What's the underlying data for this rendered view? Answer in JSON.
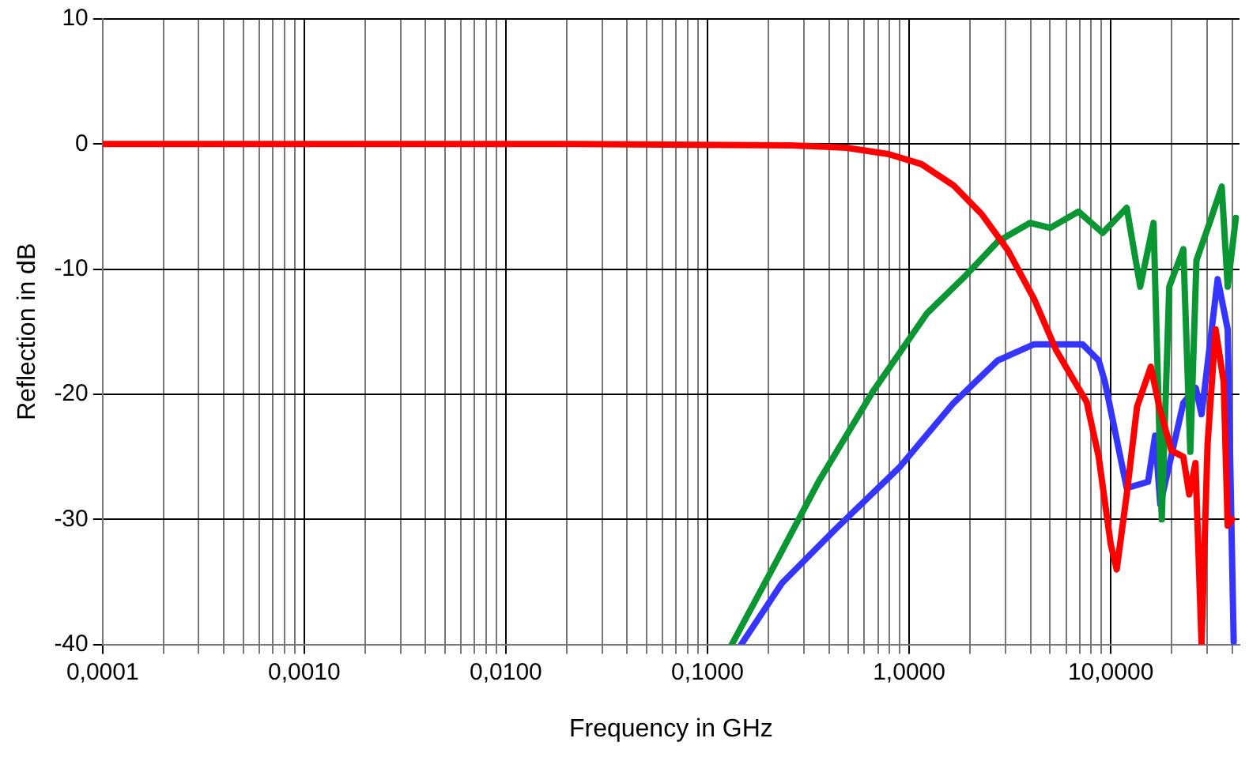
{
  "chart_data": {
    "type": "line",
    "xlabel": "Frequency in GHz",
    "ylabel": "Reflection in dB",
    "log": "x",
    "grid": true,
    "legend": false,
    "marker": "none",
    "line_style": "solid",
    "xlim": [
      0.0001,
      43.5
    ],
    "ylim": [
      -40,
      10
    ],
    "yticks": [
      -40,
      -30,
      -20,
      -10,
      0,
      10
    ],
    "xticks": [
      {
        "value": 0.0001,
        "label": "0,0001"
      },
      {
        "value": 0.0002,
        "label": null
      },
      {
        "value": 0.0003,
        "label": null
      },
      {
        "value": 0.0004,
        "label": null
      },
      {
        "value": 0.0005,
        "label": null
      },
      {
        "value": 0.0006,
        "label": null
      },
      {
        "value": 0.0007,
        "label": null
      },
      {
        "value": 0.0008,
        "label": null
      },
      {
        "value": 0.0009,
        "label": null
      },
      {
        "value": 0.001,
        "label": "0,0010"
      },
      {
        "value": 0.002,
        "label": null
      },
      {
        "value": 0.003,
        "label": null
      },
      {
        "value": 0.004,
        "label": null
      },
      {
        "value": 0.005,
        "label": null
      },
      {
        "value": 0.006,
        "label": null
      },
      {
        "value": 0.007,
        "label": null
      },
      {
        "value": 0.008,
        "label": null
      },
      {
        "value": 0.009,
        "label": null
      },
      {
        "value": 0.01,
        "label": "0,0100"
      },
      {
        "value": 0.02,
        "label": null
      },
      {
        "value": 0.03,
        "label": null
      },
      {
        "value": 0.04,
        "label": null
      },
      {
        "value": 0.05,
        "label": null
      },
      {
        "value": 0.06,
        "label": null
      },
      {
        "value": 0.07,
        "label": null
      },
      {
        "value": 0.08,
        "label": null
      },
      {
        "value": 0.09,
        "label": null
      },
      {
        "value": 0.1,
        "label": "0,1000"
      },
      {
        "value": 0.2,
        "label": null
      },
      {
        "value": 0.3,
        "label": null
      },
      {
        "value": 0.4,
        "label": null
      },
      {
        "value": 0.5,
        "label": null
      },
      {
        "value": 0.6,
        "label": null
      },
      {
        "value": 0.7,
        "label": null
      },
      {
        "value": 0.8,
        "label": null
      },
      {
        "value": 0.9,
        "label": null
      },
      {
        "value": 1,
        "label": "1,0000"
      },
      {
        "value": 2,
        "label": null
      },
      {
        "value": 3,
        "label": null
      },
      {
        "value": 4,
        "label": null
      },
      {
        "value": 5,
        "label": null
      },
      {
        "value": 6,
        "label": null
      },
      {
        "value": 7,
        "label": null
      },
      {
        "value": 8,
        "label": null
      },
      {
        "value": 9,
        "label": null
      },
      {
        "value": 10,
        "label": "10,0000"
      },
      {
        "value": 20,
        "label": null
      },
      {
        "value": 30,
        "label": null
      },
      {
        "value": 40,
        "label": null
      }
    ],
    "series": [
      {
        "color": "#ff0000",
        "x": [
          0.0001,
          0.001,
          0.01,
          0.022,
          0.26,
          0.49,
          0.79,
          1.15,
          1.66,
          2.29,
          3.09,
          4.17,
          5.37,
          6.46,
          7.59,
          8.71,
          10,
          10.7,
          12,
          13.5,
          15.8,
          17.4,
          20,
          22.9,
          24.5,
          26.3,
          28.2,
          30.2,
          33.1,
          36.3,
          38,
          40
        ],
        "values": [
          0,
          0,
          0,
          0,
          -0.1,
          -0.3,
          -0.8,
          -1.6,
          -3.3,
          -5.6,
          -8.5,
          -12.4,
          -16.5,
          -18.7,
          -20.6,
          -25,
          -32,
          -34,
          -28,
          -21,
          -17.8,
          -21,
          -24.5,
          -25,
          -28,
          -25.5,
          -40,
          -24,
          -14.8,
          -19,
          -30.5,
          -30
        ]
      },
      {
        "color": "#0a9632",
        "x": [
          0.132,
          0.219,
          0.355,
          0.66,
          1.23,
          1.91,
          2.75,
          3.98,
          5.01,
          6.92,
          9.12,
          12,
          14,
          16.3,
          17.9,
          19.5,
          22.9,
          24.8,
          26.6,
          30.9,
          35.5,
          38,
          41.7
        ],
        "values": [
          -40,
          -33.4,
          -27,
          -19.8,
          -13.5,
          -10.5,
          -7.8,
          -6.3,
          -6.7,
          -5.4,
          -7.1,
          -5.1,
          -11.4,
          -6.3,
          -30,
          -11.4,
          -8.4,
          -24.6,
          -9.3,
          -6.3,
          -3.4,
          -11.4,
          -5.9
        ]
      },
      {
        "color": "#3535ff",
        "x": [
          0.147,
          0.234,
          0.43,
          0.9,
          1.66,
          2.75,
          4.17,
          7.24,
          8.71,
          9.35,
          12,
          15.3,
          16.6,
          17.6,
          22.9,
          26.4,
          28.2,
          33.9,
          38,
          40.7
        ],
        "values": [
          -40,
          -35.1,
          -30.8,
          -25.8,
          -20.7,
          -17.3,
          -16,
          -16,
          -17.3,
          -19,
          -27.5,
          -27,
          -23.3,
          -28.8,
          -20.7,
          -19.5,
          -21.6,
          -10.8,
          -14.8,
          -39.8
        ]
      }
    ]
  }
}
